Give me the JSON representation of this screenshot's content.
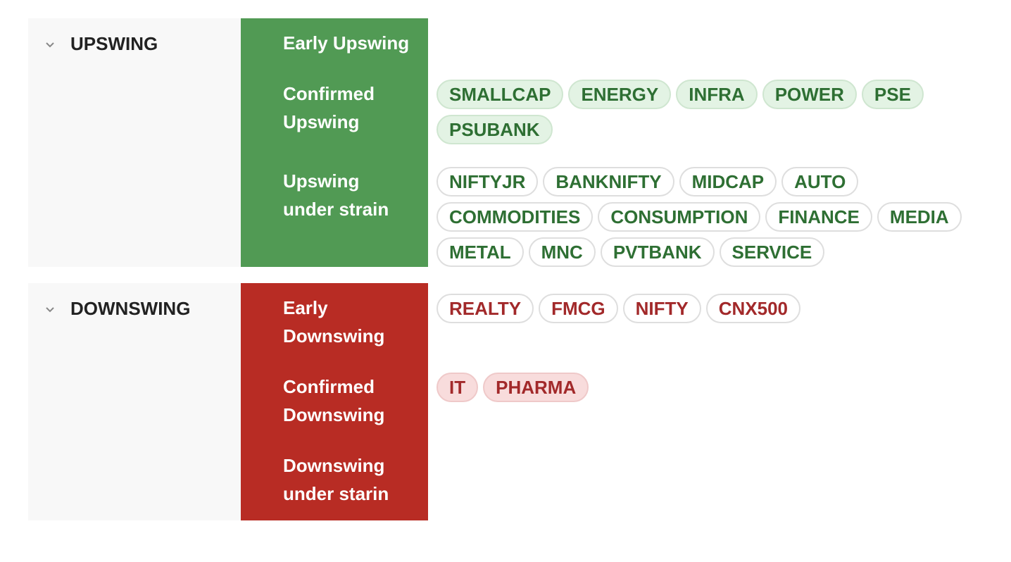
{
  "sections": [
    {
      "title": "UPSWING",
      "theme": "green",
      "rows": [
        {
          "label": "Early Upswing",
          "tag_style": "outline",
          "tags": []
        },
        {
          "label": "Confirmed Upswing",
          "tag_style": "filled",
          "tags": [
            "SMALLCAP",
            "ENERGY",
            "INFRA",
            "POWER",
            "PSE",
            "PSUBANK"
          ]
        },
        {
          "label": "Upswing under strain",
          "tag_style": "outline",
          "tags": [
            "NIFTYJR",
            "BANKNIFTY",
            "MIDCAP",
            "AUTO",
            "COMMODITIES",
            "CONSUMPTION",
            "FINANCE",
            "MEDIA",
            "METAL",
            "MNC",
            "PVTBANK",
            "SERVICE"
          ]
        }
      ]
    },
    {
      "title": "DOWNSWING",
      "theme": "red",
      "rows": [
        {
          "label": "Early Downswing",
          "tag_style": "outline",
          "tags": [
            "REALTY",
            "FMCG",
            "NIFTY",
            "CNX500"
          ]
        },
        {
          "label": "Confirmed Downswing",
          "tag_style": "filled",
          "tags": [
            "IT",
            "PHARMA"
          ]
        },
        {
          "label": "Downswing under starin",
          "tag_style": "outline",
          "tags": []
        }
      ]
    }
  ]
}
